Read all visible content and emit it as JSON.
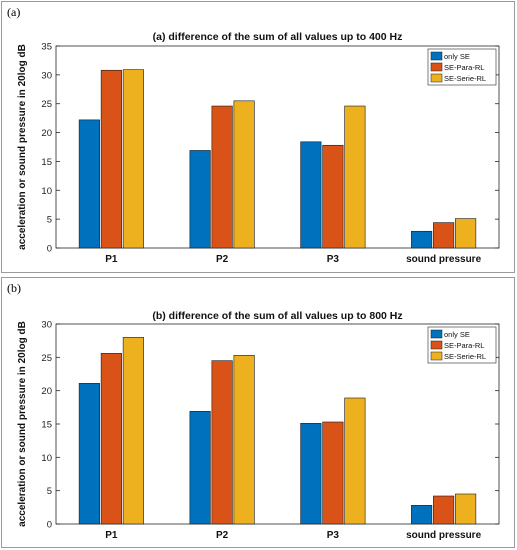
{
  "panels": [
    {
      "tag": "(a)"
    },
    {
      "tag": "(b)"
    }
  ],
  "chart_data": [
    {
      "type": "bar",
      "title": "(a) difference of the sum of all values up to 400 Hz",
      "xlabel": "",
      "ylabel": "acceleration or sound pressure in 20log dB",
      "categories": [
        "P1",
        "P2",
        "P3",
        "sound pressure"
      ],
      "ylim": [
        0,
        35
      ],
      "yticks": [
        0,
        5,
        10,
        15,
        20,
        25,
        30,
        35
      ],
      "legend_position": "top-right",
      "grid": false,
      "series": [
        {
          "name": "only SE",
          "color": "#0072BD",
          "values": [
            22.2,
            16.9,
            18.4,
            2.9
          ]
        },
        {
          "name": "SE-Para-RL",
          "color": "#D95319",
          "values": [
            30.8,
            24.6,
            17.8,
            4.4
          ]
        },
        {
          "name": "SE-Serie-RL",
          "color": "#EDB120",
          "values": [
            30.9,
            25.5,
            24.6,
            5.1
          ]
        }
      ]
    },
    {
      "type": "bar",
      "title": "(b) difference of the sum of all values up to 800 Hz",
      "xlabel": "",
      "ylabel": "acceleration or sound pressure in 20log dB",
      "categories": [
        "P1",
        "P2",
        "P3",
        "sound pressure"
      ],
      "ylim": [
        0,
        30
      ],
      "yticks": [
        0,
        5,
        10,
        15,
        20,
        25,
        30
      ],
      "legend_position": "top-right",
      "grid": false,
      "series": [
        {
          "name": "only SE",
          "color": "#0072BD",
          "values": [
            21.1,
            16.9,
            15.1,
            2.8
          ]
        },
        {
          "name": "SE-Para-RL",
          "color": "#D95319",
          "values": [
            25.6,
            24.5,
            15.3,
            4.2
          ]
        },
        {
          "name": "SE-Serie-RL",
          "color": "#EDB120",
          "values": [
            28.0,
            25.3,
            18.9,
            4.5
          ]
        }
      ]
    }
  ]
}
